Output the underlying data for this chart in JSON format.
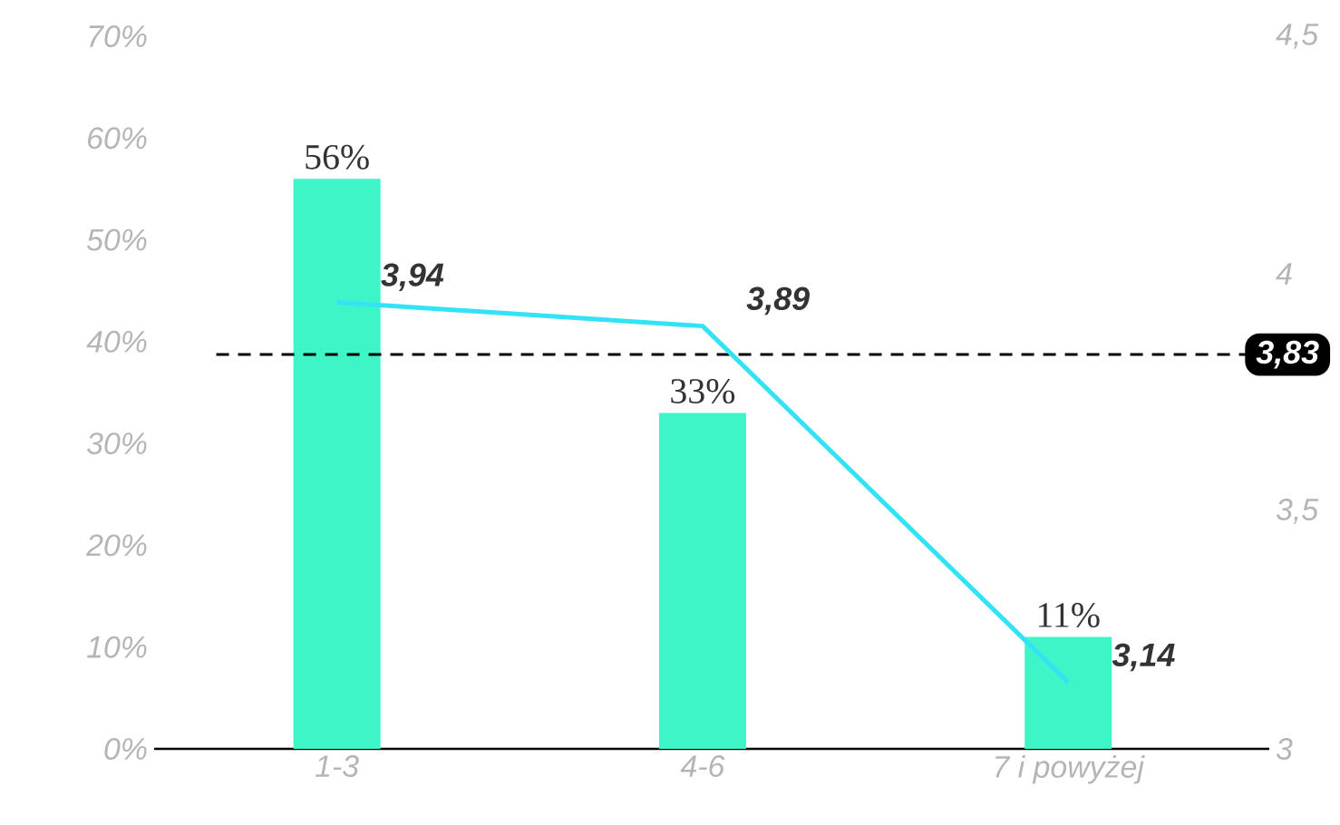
{
  "chart_data": {
    "type": "bar",
    "categories": [
      "1-3",
      "4-6",
      "7 i powyżej"
    ],
    "series": [
      {
        "color": "#3ef5c8",
        "values": [
          56,
          33,
          11
        ],
        "value_labels": [
          "56%",
          "33%",
          "11%"
        ]
      },
      {
        "type": "line",
        "axis": "y2",
        "color": "#33e3f5",
        "values": [
          3.94,
          3.89,
          3.14
        ],
        "value_labels": [
          "3,94",
          "3,89",
          "3,14"
        ]
      }
    ],
    "ylim": [
      0,
      70
    ],
    "yticks": [
      {
        "value": 0,
        "label": "0%"
      },
      {
        "value": 10,
        "label": "10%"
      },
      {
        "value": 20,
        "label": "20%"
      },
      {
        "value": 30,
        "label": "30%"
      },
      {
        "value": 40,
        "label": "40%"
      },
      {
        "value": 50,
        "label": "50%"
      },
      {
        "value": 60,
        "label": "60%"
      },
      {
        "value": 70,
        "label": "70%"
      }
    ],
    "y2lim": [
      3,
      4.5
    ],
    "y2ticks": [
      3,
      {
        "value": 3.5,
        "label": "3,5"
      },
      4,
      {
        "value": 4.5,
        "label": "4,5"
      }
    ],
    "ref_lines": [
      {
        "axis": "y2",
        "value": 3.83,
        "label": "3,83",
        "color": "#000000",
        "line_style": "dashed"
      }
    ],
    "grid": false
  }
}
